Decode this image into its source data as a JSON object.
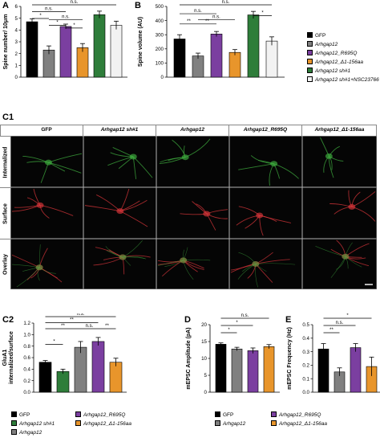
{
  "panels": {
    "A": "A",
    "B": "B",
    "C1": "C1",
    "C2": "C2",
    "D": "D",
    "E": "E"
  },
  "legend_top": [
    {
      "text": "GFP",
      "italic": false,
      "color": "#000000"
    },
    {
      "text": "Arhgap12",
      "italic": true,
      "color": "#808080"
    },
    {
      "text": "Arhgap12_R695Q",
      "italic": true,
      "color": "#7b3fa0"
    },
    {
      "text": "Arhgap12_Δ1-156aa",
      "italic": true,
      "color": "#e8952b"
    },
    {
      "text": "Arhgap12 sh#1",
      "italic": true,
      "color": "#2e7d3a"
    },
    {
      "text": "Arhgap12 sh#1+NSC23766",
      "italic": true,
      "color": "#f2f2f2"
    }
  ],
  "legend_c2": [
    {
      "text": "GFP",
      "color": "#000000"
    },
    {
      "text": "Arhgap12_R695Q",
      "color": "#7b3fa0"
    },
    {
      "text": "Arhgap12 sh#1",
      "color": "#2e7d3a"
    },
    {
      "text": "Arhgap12_Δ1-156aa",
      "color": "#e8952b"
    },
    {
      "text": "Arhgap12",
      "color": "#808080"
    }
  ],
  "legend_de": [
    {
      "text": "GFP",
      "color": "#000000"
    },
    {
      "text": "Arhgap12_R695Q",
      "color": "#7b3fa0"
    },
    {
      "text": "Arhgap12",
      "color": "#808080"
    },
    {
      "text": "Arhgap12_Δ1-156aa",
      "color": "#e8952b"
    }
  ],
  "micrographs": {
    "columns": [
      "GFP",
      "Arhgap12 sh#1",
      "Arhgap12",
      "Arhgap12_R695Q",
      "Arhgap12_Δ1-156aa"
    ],
    "rows": [
      "Internalized",
      "Surface",
      "Overlay"
    ]
  },
  "chart_data": [
    {
      "id": "A",
      "type": "bar",
      "ylabel": "Spine number/ 10μm",
      "ylim": [
        0,
        6
      ],
      "yticks": [
        0,
        1,
        2,
        3,
        4,
        5,
        6
      ],
      "categories": [
        "GFP",
        "Arhgap12",
        "Arhgap12_R695Q",
        "Arhgap12_Δ1-156aa",
        "Arhgap12 sh#1",
        "Arhgap12 sh#1+NSC23766"
      ],
      "values": [
        4.7,
        2.3,
        4.3,
        2.5,
        5.3,
        4.4
      ],
      "errors": [
        0.25,
        0.35,
        0.2,
        0.35,
        0.3,
        0.35
      ],
      "colors": [
        "#000000",
        "#808080",
        "#7b3fa0",
        "#e8952b",
        "#2e7d3a",
        "#f2f2f2"
      ],
      "annotations": [
        {
          "label": "n.s.",
          "from": 0,
          "to": 5,
          "level": 0
        },
        {
          "label": "n.s.",
          "from": 0,
          "to": 2,
          "level": 1
        },
        {
          "label": "*",
          "from": 0,
          "to": 1,
          "level": 2
        },
        {
          "label": "n.s.",
          "from": 1,
          "to": 3,
          "level": 2.2
        },
        {
          "label": "*",
          "from": 1,
          "to": 2,
          "level": 3
        },
        {
          "label": "*",
          "from": 2,
          "to": 3,
          "level": 3.4
        }
      ]
    },
    {
      "id": "B",
      "type": "bar",
      "ylabel": "Spine volume (AU)",
      "ylim": [
        0,
        500
      ],
      "yticks": [
        0,
        100,
        200,
        300,
        400,
        500
      ],
      "categories": [
        "GFP",
        "Arhgap12",
        "Arhgap12_R695Q",
        "Arhgap12_Δ1-156aa",
        "Arhgap12 sh#1",
        "Arhgap12 sh#1+NSC23766"
      ],
      "values": [
        270,
        150,
        305,
        175,
        440,
        255
      ],
      "errors": [
        30,
        20,
        18,
        20,
        25,
        30
      ],
      "colors": [
        "#000000",
        "#808080",
        "#7b3fa0",
        "#e8952b",
        "#2e7d3a",
        "#f2f2f2"
      ],
      "annotations": [
        {
          "label": "n.s.",
          "from": 0,
          "to": 5,
          "level": 0
        },
        {
          "label": "n.s.",
          "from": 0,
          "to": 2,
          "level": 1.3
        },
        {
          "label": "*",
          "from": 4,
          "to": 5,
          "level": 1.6
        },
        {
          "label": "n.s.",
          "from": 1,
          "to": 3,
          "level": 2.2
        },
        {
          "label": "**",
          "from": 0,
          "to": 1,
          "level": 2.8
        },
        {
          "label": "**",
          "from": 1,
          "to": 2,
          "level": 2.8
        }
      ]
    },
    {
      "id": "C2",
      "type": "bar",
      "ylabel": "GluA1 internalized/surface",
      "ylim": [
        0,
        1.2
      ],
      "yticks": [
        0,
        0.2,
        0.4,
        0.6,
        0.8,
        1.0,
        1.2
      ],
      "categories": [
        "GFP",
        "Arhgap12 sh#1",
        "Arhgap12",
        "Arhgap12_R695Q",
        "Arhgap12_Δ1-156aa"
      ],
      "values": [
        0.52,
        0.36,
        0.78,
        0.88,
        0.52
      ],
      "errors": [
        0.03,
        0.04,
        0.1,
        0.07,
        0.07
      ],
      "colors": [
        "#000000",
        "#2e7d3a",
        "#808080",
        "#7b3fa0",
        "#e8952b"
      ],
      "annotations": [
        {
          "label": "n.s.",
          "from": 0,
          "to": 4,
          "level": 0
        },
        {
          "label": "**",
          "from": 0,
          "to": 3,
          "level": 1
        },
        {
          "label": "**",
          "from": 0,
          "to": 2,
          "level": 2
        },
        {
          "label": "n.s.",
          "from": 2,
          "to": 3,
          "level": 2
        },
        {
          "label": "**",
          "from": 3,
          "to": 4,
          "level": 2
        },
        {
          "label": "*",
          "from": 0,
          "to": 1,
          "level": 4.6
        }
      ]
    },
    {
      "id": "D",
      "type": "bar",
      "ylabel": "mEPSC Amplitude (pA)",
      "ylim": [
        0,
        20
      ],
      "yticks": [
        0,
        5,
        10,
        15,
        20
      ],
      "categories": [
        "GFP",
        "Arhgap12",
        "Arhgap12_R695Q",
        "Arhgap12_Δ1-156aa"
      ],
      "values": [
        14.2,
        12.8,
        12.3,
        13.5
      ],
      "errors": [
        0.4,
        0.5,
        0.8,
        0.6
      ],
      "colors": [
        "#000000",
        "#808080",
        "#7b3fa0",
        "#e8952b"
      ],
      "annotations": [
        {
          "label": "n.s.",
          "from": 0,
          "to": 3,
          "level": 0
        },
        {
          "label": "*",
          "from": 0,
          "to": 2,
          "level": 1
        },
        {
          "label": "*",
          "from": 0,
          "to": 1,
          "level": 2
        }
      ]
    },
    {
      "id": "E",
      "type": "bar",
      "ylabel": "mEPSC Frequency (Hz)",
      "ylim": [
        0,
        0.5
      ],
      "yticks": [
        0.0,
        0.1,
        0.2,
        0.3,
        0.4,
        0.5
      ],
      "categories": [
        "GFP",
        "Arhgap12",
        "Arhgap12_R695Q",
        "Arhgap12_Δ1-156aa"
      ],
      "values": [
        0.32,
        0.15,
        0.33,
        0.19
      ],
      "errors": [
        0.04,
        0.03,
        0.03,
        0.07
      ],
      "colors": [
        "#000000",
        "#808080",
        "#7b3fa0",
        "#e8952b"
      ],
      "annotations": [
        {
          "label": "*",
          "from": 0,
          "to": 3,
          "level": 0
        },
        {
          "label": "n.s.",
          "from": 0,
          "to": 2,
          "level": 1
        },
        {
          "label": "**",
          "from": 0,
          "to": 1,
          "level": 2
        }
      ]
    }
  ]
}
